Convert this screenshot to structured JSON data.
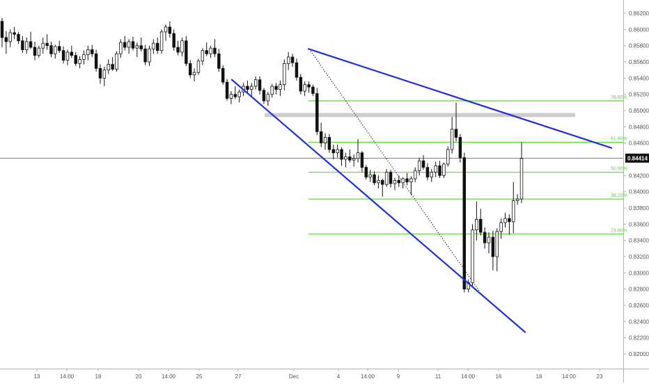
{
  "chart_data": {
    "type": "candlestick",
    "y_axis": {
      "ticks": [
        "0.86200",
        "0.86000",
        "0.85800",
        "0.85600",
        "0.85400",
        "0.85200",
        "0.85000",
        "0.84800",
        "0.84600",
        "0.84200",
        "0.84000",
        "0.83800",
        "0.83600",
        "0.83400",
        "0.83200",
        "0.83000",
        "0.82800",
        "0.82600",
        "0.82400",
        "0.82200",
        "0.82000"
      ],
      "range": [
        0.8189,
        0.8628
      ],
      "position": "right"
    },
    "x_axis": {
      "ticks": [
        "13",
        "14:00",
        "18",
        "20",
        "14:00",
        "25",
        "27",
        "Dec",
        "4",
        "14:00",
        "9",
        "11",
        "14:00",
        "16",
        "18",
        "14:00",
        "23"
      ]
    },
    "current_price": {
      "label": "0.84414",
      "value": 0.84414
    },
    "fibonacci": {
      "levels": [
        {
          "label": "78.60%",
          "value": 0.8512
        },
        {
          "label": "61.80%",
          "value": 0.8461
        },
        {
          "label": "50.00%",
          "value": 0.8424
        },
        {
          "label": "38.20%",
          "value": 0.8391
        },
        {
          "label": "23.60%",
          "value": 0.8348
        }
      ]
    },
    "resistance_zone": {
      "from": 0.8492,
      "to": 0.8497
    },
    "trendlines": [
      {
        "name": "upper",
        "start": 0.8576,
        "end": 0.8454
      },
      {
        "name": "lower",
        "start": 0.8538,
        "end": 0.8227
      }
    ],
    "colors": {
      "trendline": "#1f2ee6",
      "fib": "#5fcf3a",
      "zone": "#c8c8c8",
      "bear_candle": "#111111",
      "bull_candle": "#ffffff",
      "current_price_tag": "#111111"
    },
    "candles": [
      [
        0.861,
        0.8614,
        0.8578,
        0.859
      ],
      [
        0.859,
        0.8598,
        0.857,
        0.8585
      ],
      [
        0.8585,
        0.86,
        0.8578,
        0.8596
      ],
      [
        0.8596,
        0.8603,
        0.8588,
        0.8594
      ],
      [
        0.8594,
        0.8597,
        0.8582,
        0.8586
      ],
      [
        0.8586,
        0.8592,
        0.8571,
        0.8575
      ],
      [
        0.8575,
        0.859,
        0.857,
        0.8585
      ],
      [
        0.8585,
        0.8597,
        0.8576,
        0.8578
      ],
      [
        0.8578,
        0.8585,
        0.8562,
        0.8568
      ],
      [
        0.8568,
        0.858,
        0.8565,
        0.8577
      ],
      [
        0.8577,
        0.859,
        0.857,
        0.8583
      ],
      [
        0.8583,
        0.8594,
        0.8575,
        0.858
      ],
      [
        0.858,
        0.8585,
        0.8566,
        0.857
      ],
      [
        0.857,
        0.8581,
        0.8564,
        0.8579
      ],
      [
        0.8579,
        0.8586,
        0.8571,
        0.8574
      ],
      [
        0.8574,
        0.8579,
        0.8558,
        0.8562
      ],
      [
        0.8562,
        0.8575,
        0.8556,
        0.8572
      ],
      [
        0.8572,
        0.858,
        0.8565,
        0.8568
      ],
      [
        0.8568,
        0.8572,
        0.8555,
        0.8558
      ],
      [
        0.8558,
        0.8567,
        0.8552,
        0.8563
      ],
      [
        0.8563,
        0.8574,
        0.8557,
        0.8569
      ],
      [
        0.8569,
        0.858,
        0.8562,
        0.8575
      ],
      [
        0.8575,
        0.8581,
        0.8566,
        0.857
      ],
      [
        0.857,
        0.8575,
        0.8548,
        0.8552
      ],
      [
        0.8552,
        0.8557,
        0.8533,
        0.854
      ],
      [
        0.854,
        0.8554,
        0.853,
        0.855
      ],
      [
        0.855,
        0.8563,
        0.8545,
        0.8557
      ],
      [
        0.8557,
        0.8566,
        0.8549,
        0.8551
      ],
      [
        0.8551,
        0.8573,
        0.8548,
        0.857
      ],
      [
        0.857,
        0.8588,
        0.8565,
        0.8584
      ],
      [
        0.8584,
        0.8592,
        0.8574,
        0.8578
      ],
      [
        0.8578,
        0.8588,
        0.857,
        0.8585
      ],
      [
        0.8585,
        0.8591,
        0.8574,
        0.8577
      ],
      [
        0.8577,
        0.8584,
        0.8566,
        0.858
      ],
      [
        0.858,
        0.859,
        0.8573,
        0.8576
      ],
      [
        0.8576,
        0.8581,
        0.8556,
        0.856
      ],
      [
        0.856,
        0.858,
        0.8555,
        0.8576
      ],
      [
        0.8576,
        0.8588,
        0.857,
        0.8583
      ],
      [
        0.8583,
        0.859,
        0.857,
        0.8574
      ],
      [
        0.8574,
        0.86,
        0.857,
        0.8597
      ],
      [
        0.8597,
        0.8606,
        0.8586,
        0.8603
      ],
      [
        0.8603,
        0.861,
        0.859,
        0.8595
      ],
      [
        0.8595,
        0.86,
        0.8574,
        0.8578
      ],
      [
        0.8578,
        0.8586,
        0.8568,
        0.8572
      ],
      [
        0.8572,
        0.859,
        0.8567,
        0.8586
      ],
      [
        0.8586,
        0.8592,
        0.8555,
        0.8558
      ],
      [
        0.8558,
        0.8562,
        0.854,
        0.8544
      ],
      [
        0.8544,
        0.8552,
        0.8536,
        0.8547
      ],
      [
        0.8547,
        0.8564,
        0.8544,
        0.8561
      ],
      [
        0.8561,
        0.8577,
        0.8556,
        0.8574
      ],
      [
        0.8574,
        0.8584,
        0.8567,
        0.857
      ],
      [
        0.857,
        0.858,
        0.8565,
        0.8577
      ],
      [
        0.8577,
        0.8588,
        0.8566,
        0.857
      ],
      [
        0.857,
        0.8576,
        0.8548,
        0.8552
      ],
      [
        0.8552,
        0.8556,
        0.8532,
        0.8535
      ],
      [
        0.8535,
        0.8539,
        0.8512,
        0.8515
      ],
      [
        0.8515,
        0.8524,
        0.8508,
        0.852
      ],
      [
        0.852,
        0.853,
        0.8514,
        0.8517
      ],
      [
        0.8517,
        0.8526,
        0.851,
        0.8523
      ],
      [
        0.8523,
        0.8534,
        0.8518,
        0.853
      ],
      [
        0.853,
        0.8537,
        0.8522,
        0.8526
      ],
      [
        0.8526,
        0.8534,
        0.8518,
        0.853
      ],
      [
        0.853,
        0.8542,
        0.8526,
        0.8538
      ],
      [
        0.8538,
        0.8542,
        0.852,
        0.8525
      ],
      [
        0.8525,
        0.8528,
        0.8508,
        0.8512
      ],
      [
        0.8512,
        0.8523,
        0.8506,
        0.852
      ],
      [
        0.852,
        0.8533,
        0.8516,
        0.853
      ],
      [
        0.853,
        0.8534,
        0.852,
        0.8526
      ],
      [
        0.8526,
        0.8537,
        0.8518,
        0.8532
      ],
      [
        0.8532,
        0.8563,
        0.8525,
        0.8558
      ],
      [
        0.8558,
        0.8572,
        0.855,
        0.8566
      ],
      [
        0.8566,
        0.857,
        0.8554,
        0.8559
      ],
      [
        0.8559,
        0.8564,
        0.8537,
        0.8541
      ],
      [
        0.8541,
        0.8545,
        0.852,
        0.8524
      ],
      [
        0.8524,
        0.8536,
        0.8518,
        0.8532
      ],
      [
        0.8532,
        0.8536,
        0.8522,
        0.8529
      ],
      [
        0.8529,
        0.8532,
        0.8518,
        0.8521
      ],
      [
        0.8521,
        0.8528,
        0.847,
        0.8474
      ],
      [
        0.8474,
        0.8485,
        0.8455,
        0.846
      ],
      [
        0.846,
        0.8472,
        0.8452,
        0.8467
      ],
      [
        0.8467,
        0.8471,
        0.8448,
        0.8452
      ],
      [
        0.8452,
        0.8458,
        0.844,
        0.8448
      ],
      [
        0.8448,
        0.8458,
        0.8442,
        0.8452
      ],
      [
        0.8452,
        0.8455,
        0.8432,
        0.844
      ],
      [
        0.844,
        0.8448,
        0.843,
        0.8443
      ],
      [
        0.8443,
        0.8452,
        0.8436,
        0.8439
      ],
      [
        0.8439,
        0.8446,
        0.8431,
        0.8441
      ],
      [
        0.8441,
        0.8465,
        0.8436,
        0.8448
      ],
      [
        0.8448,
        0.845,
        0.8424,
        0.843
      ],
      [
        0.843,
        0.8433,
        0.8415,
        0.8418
      ],
      [
        0.8418,
        0.8427,
        0.8412,
        0.8421
      ],
      [
        0.8421,
        0.8425,
        0.8408,
        0.8411
      ],
      [
        0.8411,
        0.842,
        0.8404,
        0.8414
      ],
      [
        0.8414,
        0.8416,
        0.8394,
        0.8409
      ],
      [
        0.8409,
        0.8428,
        0.8406,
        0.8424
      ],
      [
        0.8424,
        0.8427,
        0.8405,
        0.841
      ],
      [
        0.841,
        0.8417,
        0.8402,
        0.8414
      ],
      [
        0.8414,
        0.842,
        0.8406,
        0.8411
      ],
      [
        0.8411,
        0.8418,
        0.8404,
        0.8416
      ],
      [
        0.8416,
        0.8423,
        0.8408,
        0.8412
      ],
      [
        0.8412,
        0.8419,
        0.8396,
        0.8416
      ],
      [
        0.8416,
        0.843,
        0.8412,
        0.8426
      ],
      [
        0.8426,
        0.8442,
        0.842,
        0.8438
      ],
      [
        0.8438,
        0.8445,
        0.8427,
        0.843
      ],
      [
        0.843,
        0.8435,
        0.8414,
        0.8418
      ],
      [
        0.8418,
        0.8428,
        0.8412,
        0.8424
      ],
      [
        0.8424,
        0.8437,
        0.8418,
        0.8432
      ],
      [
        0.8432,
        0.8438,
        0.8417,
        0.842
      ],
      [
        0.842,
        0.8436,
        0.8417,
        0.8434
      ],
      [
        0.8434,
        0.8456,
        0.8431,
        0.8452
      ],
      [
        0.8452,
        0.8492,
        0.8447,
        0.8477
      ],
      [
        0.8477,
        0.851,
        0.8462,
        0.8467
      ],
      [
        0.8467,
        0.8471,
        0.8436,
        0.8442
      ],
      [
        0.8442,
        0.8448,
        0.8276,
        0.828
      ],
      [
        0.828,
        0.8292,
        0.8276,
        0.8288
      ],
      [
        0.8288,
        0.836,
        0.8284,
        0.8353
      ],
      [
        0.8353,
        0.8388,
        0.834,
        0.8366
      ],
      [
        0.8366,
        0.8379,
        0.8346,
        0.835
      ],
      [
        0.835,
        0.8356,
        0.833,
        0.8337
      ],
      [
        0.8337,
        0.835,
        0.8324,
        0.8344
      ],
      [
        0.8344,
        0.8352,
        0.8303,
        0.832
      ],
      [
        0.832,
        0.8355,
        0.8302,
        0.8351
      ],
      [
        0.8351,
        0.8367,
        0.8342,
        0.8362
      ],
      [
        0.8362,
        0.8374,
        0.8356,
        0.8367
      ],
      [
        0.8367,
        0.8372,
        0.8347,
        0.8363
      ],
      [
        0.8363,
        0.8412,
        0.8349,
        0.8389
      ],
      [
        0.8389,
        0.8397,
        0.8384,
        0.8391
      ],
      [
        0.8391,
        0.8461,
        0.8386,
        0.8441
      ]
    ]
  }
}
